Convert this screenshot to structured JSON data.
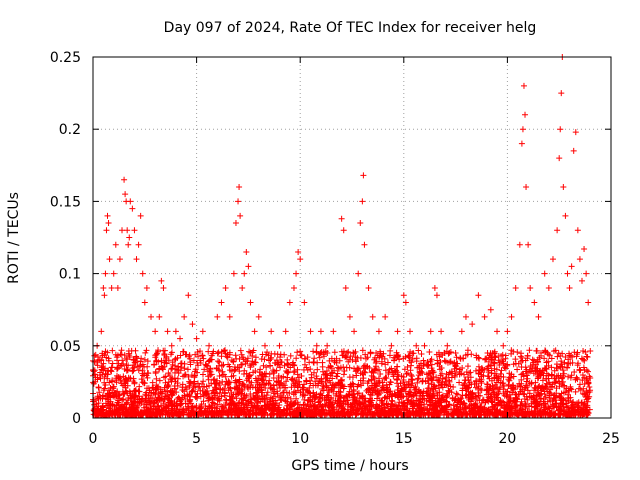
{
  "chart_data": {
    "type": "scatter",
    "title": "Day 097 of 2024, Rate Of TEC Index for receiver helg",
    "xlabel": "GPS time / hours",
    "ylabel": "ROTI / TECUs",
    "xlim": [
      0,
      25
    ],
    "ylim": [
      0,
      0.25
    ],
    "xticks": [
      "0",
      "5",
      "10",
      "15",
      "20",
      "25"
    ],
    "xtick_values": [
      0,
      5,
      10,
      15,
      20,
      25
    ],
    "yticks": [
      "0",
      "0.05",
      "0.1",
      "0.15",
      "0.2",
      "0.25"
    ],
    "ytick_values": [
      0,
      0.05,
      0.1,
      0.15,
      0.2,
      0.25
    ],
    "grid": true,
    "legend": "none",
    "marker": "+",
    "color": "#ff0000",
    "series": [
      {
        "points": [
          [
            0.1,
            0.03
          ],
          [
            0.2,
            0.05
          ],
          [
            0.3,
            0.04
          ],
          [
            0.4,
            0.06
          ],
          [
            0.5,
            0.09
          ],
          [
            0.55,
            0.085
          ],
          [
            0.6,
            0.1
          ],
          [
            0.65,
            0.13
          ],
          [
            0.7,
            0.14
          ],
          [
            0.75,
            0.135
          ],
          [
            0.8,
            0.11
          ],
          [
            0.9,
            0.09
          ],
          [
            1.0,
            0.1
          ],
          [
            1.1,
            0.12
          ],
          [
            1.2,
            0.09
          ],
          [
            1.3,
            0.11
          ],
          [
            1.4,
            0.13
          ],
          [
            1.5,
            0.165
          ],
          [
            1.55,
            0.155
          ],
          [
            1.6,
            0.15
          ],
          [
            1.65,
            0.13
          ],
          [
            1.7,
            0.12
          ],
          [
            1.75,
            0.125
          ],
          [
            1.8,
            0.15
          ],
          [
            1.9,
            0.145
          ],
          [
            2.0,
            0.13
          ],
          [
            2.1,
            0.11
          ],
          [
            2.2,
            0.12
          ],
          [
            2.3,
            0.14
          ],
          [
            2.4,
            0.1
          ],
          [
            2.5,
            0.08
          ],
          [
            2.6,
            0.09
          ],
          [
            2.8,
            0.07
          ],
          [
            3.0,
            0.06
          ],
          [
            3.2,
            0.07
          ],
          [
            3.3,
            0.095
          ],
          [
            3.4,
            0.09
          ],
          [
            3.6,
            0.06
          ],
          [
            3.8,
            0.05
          ],
          [
            4.0,
            0.06
          ],
          [
            4.2,
            0.055
          ],
          [
            4.4,
            0.07
          ],
          [
            4.6,
            0.085
          ],
          [
            4.8,
            0.065
          ],
          [
            5.0,
            0.055
          ],
          [
            5.3,
            0.06
          ],
          [
            5.6,
            0.05
          ],
          [
            6.0,
            0.07
          ],
          [
            6.2,
            0.08
          ],
          [
            6.4,
            0.09
          ],
          [
            6.6,
            0.07
          ],
          [
            6.8,
            0.1
          ],
          [
            6.9,
            0.135
          ],
          [
            7.0,
            0.15
          ],
          [
            7.05,
            0.16
          ],
          [
            7.1,
            0.14
          ],
          [
            7.2,
            0.09
          ],
          [
            7.3,
            0.1
          ],
          [
            7.4,
            0.115
          ],
          [
            7.5,
            0.105
          ],
          [
            7.6,
            0.08
          ],
          [
            7.8,
            0.06
          ],
          [
            8.0,
            0.07
          ],
          [
            8.3,
            0.05
          ],
          [
            8.6,
            0.06
          ],
          [
            9.0,
            0.05
          ],
          [
            9.3,
            0.06
          ],
          [
            9.5,
            0.08
          ],
          [
            9.7,
            0.09
          ],
          [
            9.8,
            0.1
          ],
          [
            9.9,
            0.115
          ],
          [
            10.0,
            0.11
          ],
          [
            10.2,
            0.08
          ],
          [
            10.5,
            0.06
          ],
          [
            10.8,
            0.05
          ],
          [
            11.0,
            0.06
          ],
          [
            11.3,
            0.05
          ],
          [
            11.6,
            0.06
          ],
          [
            12.0,
            0.138
          ],
          [
            12.1,
            0.13
          ],
          [
            12.2,
            0.09
          ],
          [
            12.4,
            0.07
          ],
          [
            12.6,
            0.06
          ],
          [
            12.8,
            0.1
          ],
          [
            12.9,
            0.135
          ],
          [
            13.0,
            0.15
          ],
          [
            13.05,
            0.168
          ],
          [
            13.1,
            0.12
          ],
          [
            13.3,
            0.09
          ],
          [
            13.5,
            0.07
          ],
          [
            13.8,
            0.06
          ],
          [
            14.1,
            0.07
          ],
          [
            14.4,
            0.05
          ],
          [
            14.7,
            0.06
          ],
          [
            15.0,
            0.085
          ],
          [
            15.1,
            0.08
          ],
          [
            15.3,
            0.06
          ],
          [
            15.6,
            0.05
          ],
          [
            16.0,
            0.05
          ],
          [
            16.3,
            0.06
          ],
          [
            16.5,
            0.09
          ],
          [
            16.6,
            0.085
          ],
          [
            16.8,
            0.06
          ],
          [
            17.1,
            0.05
          ],
          [
            17.5,
            0.045
          ],
          [
            17.8,
            0.06
          ],
          [
            18.0,
            0.07
          ],
          [
            18.3,
            0.065
          ],
          [
            18.6,
            0.085
          ],
          [
            18.9,
            0.07
          ],
          [
            19.2,
            0.075
          ],
          [
            19.5,
            0.06
          ],
          [
            19.8,
            0.05
          ],
          [
            20.0,
            0.06
          ],
          [
            20.2,
            0.07
          ],
          [
            20.4,
            0.09
          ],
          [
            20.6,
            0.12
          ],
          [
            20.7,
            0.19
          ],
          [
            20.75,
            0.2
          ],
          [
            20.8,
            0.23
          ],
          [
            20.85,
            0.21
          ],
          [
            20.9,
            0.16
          ],
          [
            21.0,
            0.12
          ],
          [
            21.1,
            0.09
          ],
          [
            21.3,
            0.08
          ],
          [
            21.5,
            0.07
          ],
          [
            21.8,
            0.1
          ],
          [
            22.0,
            0.09
          ],
          [
            22.2,
            0.11
          ],
          [
            22.4,
            0.13
          ],
          [
            22.5,
            0.18
          ],
          [
            22.55,
            0.2
          ],
          [
            22.6,
            0.225
          ],
          [
            22.65,
            0.25
          ],
          [
            22.7,
            0.16
          ],
          [
            22.8,
            0.14
          ],
          [
            22.9,
            0.1
          ],
          [
            23.0,
            0.09
          ],
          [
            23.1,
            0.105
          ],
          [
            23.2,
            0.185
          ],
          [
            23.3,
            0.198
          ],
          [
            23.4,
            0.13
          ],
          [
            23.5,
            0.11
          ],
          [
            23.6,
            0.095
          ],
          [
            23.7,
            0.117
          ],
          [
            23.8,
            0.1
          ],
          [
            23.9,
            0.08
          ]
        ]
      }
    ]
  }
}
